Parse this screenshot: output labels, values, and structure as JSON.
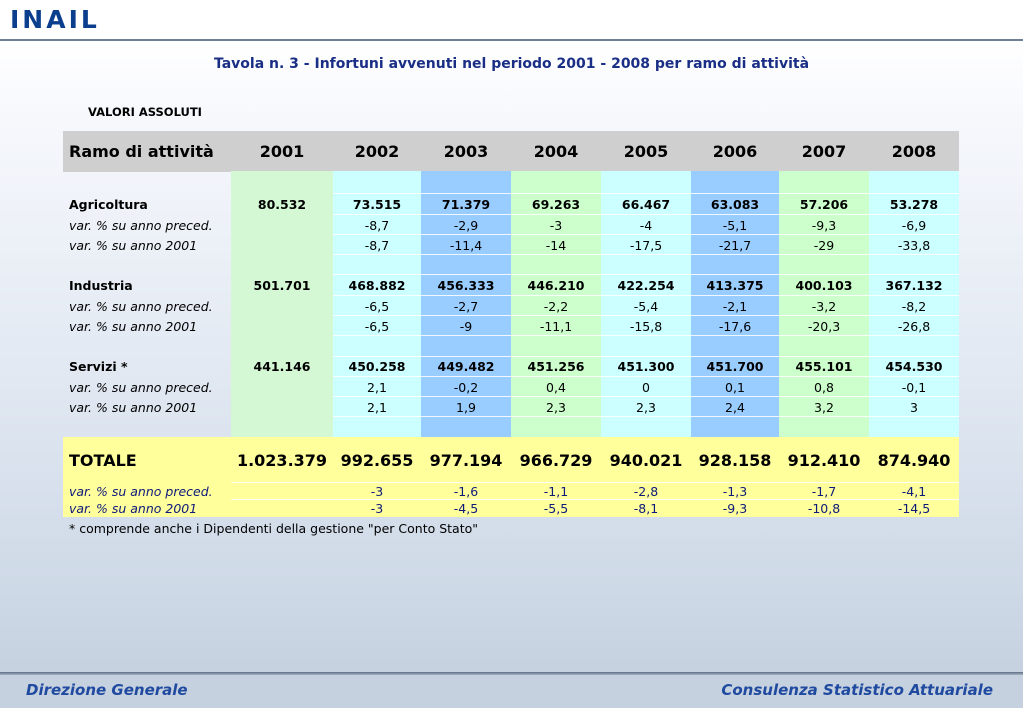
{
  "header": {
    "logo_text": "INAIL"
  },
  "title": "Tavola n. 3 - Infortuni avvenuti nel periodo 2001 - 2008 per ramo di attività",
  "subtitle": "VALORI ASSOLUTI",
  "table": {
    "label_header": "Ramo di attività",
    "years": [
      "2001",
      "2002",
      "2003",
      "2004",
      "2005",
      "2006",
      "2007",
      "2008"
    ],
    "groups": [
      {
        "name": "Agricoltura",
        "values": [
          "80.532",
          "73.515",
          "71.379",
          "69.263",
          "66.467",
          "63.083",
          "57.206",
          "53.278"
        ],
        "var_prec_label": "var. % su anno preced.",
        "var_prec": [
          "",
          "-8,7",
          "-2,9",
          "-3",
          "-4",
          "-5,1",
          "-9,3",
          "-6,9"
        ],
        "var_2001_label": "var. % su anno 2001",
        "var_2001": [
          "",
          "-8,7",
          "-11,4",
          "-14",
          "-17,5",
          "-21,7",
          "-29",
          "-33,8"
        ]
      },
      {
        "name": "Industria",
        "values": [
          "501.701",
          "468.882",
          "456.333",
          "446.210",
          "422.254",
          "413.375",
          "400.103",
          "367.132"
        ],
        "var_prec_label": "var. % su anno preced.",
        "var_prec": [
          "",
          "-6,5",
          "-2,7",
          "-2,2",
          "-5,4",
          "-2,1",
          "-3,2",
          "-8,2"
        ],
        "var_2001_label": "var. % su anno 2001",
        "var_2001": [
          "",
          "-6,5",
          "-9",
          "-11,1",
          "-15,8",
          "-17,6",
          "-20,3",
          "-26,8"
        ]
      },
      {
        "name": "Servizi *",
        "values": [
          "441.146",
          "450.258",
          "449.482",
          "451.256",
          "451.300",
          "451.700",
          "455.101",
          "454.530"
        ],
        "var_prec_label": "var. % su anno preced.",
        "var_prec": [
          "",
          "2,1",
          "-0,2",
          "0,4",
          "0",
          "0,1",
          "0,8",
          "-0,1"
        ],
        "var_2001_label": "var. % su anno 2001",
        "var_2001": [
          "",
          "2,1",
          "1,9",
          "2,3",
          "2,3",
          "2,4",
          "3,2",
          "3"
        ]
      }
    ],
    "total": {
      "name": "TOTALE",
      "values": [
        "1.023.379",
        "992.655",
        "977.194",
        "966.729",
        "940.021",
        "928.158",
        "912.410",
        "874.940"
      ],
      "var_prec_label": "var. % su anno preced.",
      "var_prec": [
        "",
        "-3",
        "-1,6",
        "-1,1",
        "-2,8",
        "-1,3",
        "-1,7",
        "-4,1"
      ],
      "var_2001_label": "var. % su anno 2001",
      "var_2001": [
        "",
        "-3",
        "-4,5",
        "-5,5",
        "-8,1",
        "-9,3",
        "-10,8",
        "-14,5"
      ]
    },
    "footnote": "* comprende anche i Dipendenti della gestione \"per Conto Stato\""
  },
  "colors": {
    "title": "#1a2e86",
    "col_2001": "#d4f7d4",
    "col_cyan": "#ccffff",
    "col_blue": "#99ccff",
    "col_green": "#ccffcc",
    "total_band": "#ffff9c",
    "footer": "#1f4aa0"
  },
  "footer": {
    "left": "Direzione Generale",
    "right": "Consulenza Statistico Attuariale"
  }
}
